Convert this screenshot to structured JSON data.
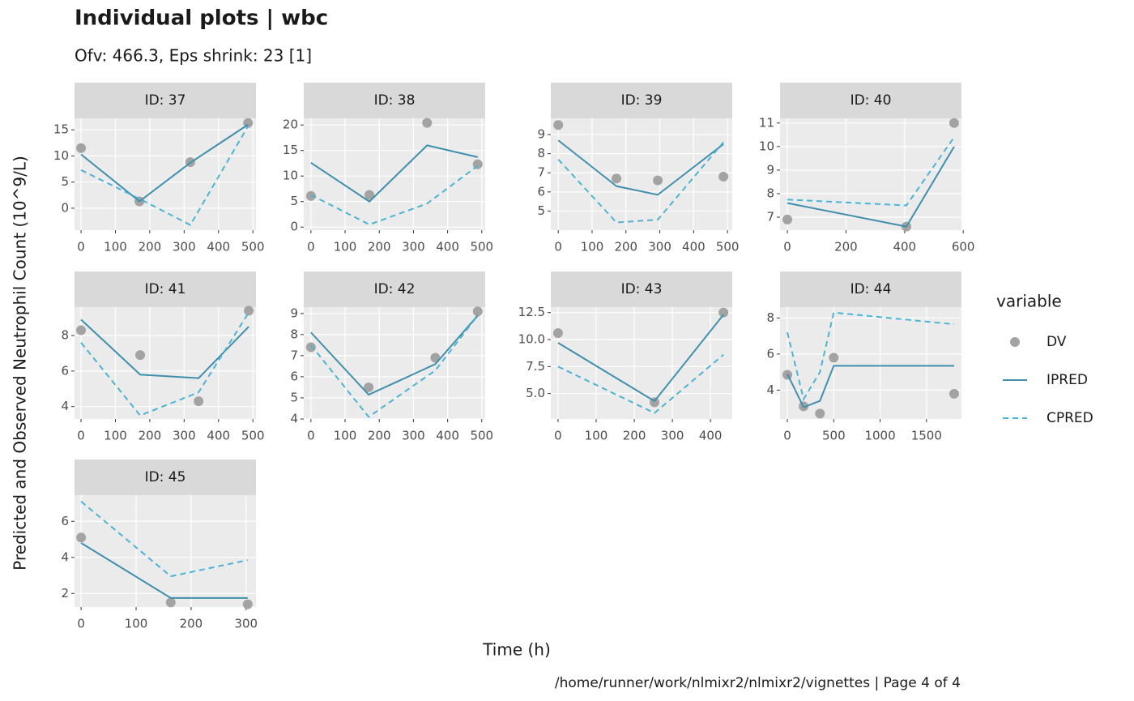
{
  "title": "Individual plots | wbc",
  "subtitle": "Ofv: 466.3, Eps shrink: 23 [1]",
  "x_label": "Time (h)",
  "y_label": "Predicted and Observed Neutrophil Count (10^9/L)",
  "caption": "/home/runner/work/nlmixr2/nlmixr2/vignettes | Page 4 of 4",
  "legend_title": "variable",
  "chart_data": [
    {
      "type": "line",
      "title": "ID: 37",
      "x": [
        0,
        170,
        318,
        486
      ],
      "xlim": [
        -19,
        509
      ],
      "xticks": [
        0,
        100,
        200,
        300,
        400,
        500
      ],
      "ylim": [
        -4.2,
        17.2
      ],
      "yticks": [
        0,
        5,
        10,
        15
      ],
      "grid": true,
      "series": [
        {
          "name": "DV",
          "color": "#a3a3a3",
          "style": "point",
          "values": [
            11.5,
            1.3,
            8.8,
            16.3
          ]
        },
        {
          "name": "IPRED",
          "color": "#3f8fad",
          "style": "solid",
          "values": [
            10.3,
            1.3,
            8.7,
            16
          ]
        },
        {
          "name": "CPRED",
          "color": "#4cb3d4",
          "style": "dashed",
          "values": [
            7.3,
            1.8,
            -3.2,
            15.7
          ]
        }
      ]
    },
    {
      "type": "line",
      "title": "ID: 38",
      "x": [
        0,
        171,
        340,
        488
      ],
      "xlim": [
        -21,
        510
      ],
      "xticks": [
        0,
        100,
        200,
        300,
        400,
        500
      ],
      "ylim": [
        -0.6,
        21.3
      ],
      "yticks": [
        0,
        5,
        10,
        15,
        20
      ],
      "grid": true,
      "series": [
        {
          "name": "DV",
          "color": "#a3a3a3",
          "style": "point",
          "values": [
            6.1,
            6.3,
            20.4,
            12.3
          ]
        },
        {
          "name": "IPRED",
          "color": "#3f8fad",
          "style": "solid",
          "values": [
            12.6,
            5,
            16,
            13.7
          ]
        },
        {
          "name": "CPRED",
          "color": "#4cb3d4",
          "style": "dashed",
          "values": [
            6.3,
            0.5,
            4.6,
            12
          ]
        }
      ]
    },
    {
      "type": "line",
      "title": "ID: 39",
      "x": [
        0,
        172,
        294,
        488
      ],
      "xlim": [
        -22,
        514
      ],
      "xticks": [
        0,
        100,
        200,
        300,
        400,
        500
      ],
      "ylim": [
        4.0,
        9.85
      ],
      "yticks": [
        5,
        6,
        7,
        8,
        9
      ],
      "grid": true,
      "series": [
        {
          "name": "DV",
          "color": "#a3a3a3",
          "style": "point",
          "values": [
            9.5,
            6.7,
            6.6,
            6.8
          ]
        },
        {
          "name": "IPRED",
          "color": "#3f8fad",
          "style": "solid",
          "values": [
            8.7,
            6.3,
            5.85,
            8.5
          ]
        },
        {
          "name": "CPRED",
          "color": "#4cb3d4",
          "style": "dashed",
          "values": [
            7.7,
            4.4,
            4.55,
            8.6
          ]
        }
      ]
    },
    {
      "type": "line",
      "title": "ID: 40",
      "x": [
        0,
        406,
        569
      ],
      "xlim": [
        -25,
        594
      ],
      "xticks": [
        0,
        200,
        400,
        600
      ],
      "ylim": [
        6.45,
        11.2
      ],
      "yticks": [
        7,
        8,
        9,
        10,
        11
      ],
      "grid": true,
      "series": [
        {
          "name": "DV",
          "color": "#a3a3a3",
          "style": "point",
          "values": [
            6.9,
            6.6,
            11
          ]
        },
        {
          "name": "IPRED",
          "color": "#3f8fad",
          "style": "solid",
          "values": [
            7.6,
            6.6,
            10
          ]
        },
        {
          "name": "CPRED",
          "color": "#4cb3d4",
          "style": "dashed",
          "values": [
            7.75,
            7.5,
            10.4
          ]
        }
      ]
    },
    {
      "type": "line",
      "title": "ID: 41",
      "x": [
        0,
        172,
        342,
        488
      ],
      "xlim": [
        -19,
        509
      ],
      "xticks": [
        0,
        100,
        200,
        300,
        400,
        500
      ],
      "ylim": [
        3.3,
        9.6
      ],
      "yticks": [
        4,
        6,
        8
      ],
      "grid": true,
      "series": [
        {
          "name": "DV",
          "color": "#a3a3a3",
          "style": "point",
          "values": [
            8.3,
            6.9,
            4.3,
            9.4
          ]
        },
        {
          "name": "IPRED",
          "color": "#3f8fad",
          "style": "solid",
          "values": [
            8.9,
            5.8,
            5.6,
            8.5
          ]
        },
        {
          "name": "CPRED",
          "color": "#4cb3d4",
          "style": "dashed",
          "values": [
            7.6,
            3.5,
            4.8,
            9.3
          ]
        }
      ]
    },
    {
      "type": "line",
      "title": "ID: 42",
      "x": [
        0,
        169,
        364,
        488
      ],
      "xlim": [
        -21,
        510
      ],
      "xticks": [
        0,
        100,
        200,
        300,
        400,
        500
      ],
      "ylim": [
        4.0,
        9.3
      ],
      "yticks": [
        4,
        5,
        6,
        7,
        8,
        9
      ],
      "grid": true,
      "series": [
        {
          "name": "DV",
          "color": "#a3a3a3",
          "style": "point",
          "values": [
            7.4,
            5.5,
            6.9,
            9.1
          ]
        },
        {
          "name": "IPRED",
          "color": "#3f8fad",
          "style": "solid",
          "values": [
            8.1,
            5.15,
            6.6,
            8.9
          ]
        },
        {
          "name": "CPRED",
          "color": "#4cb3d4",
          "style": "dashed",
          "values": [
            7.5,
            4.1,
            6.3,
            8.9
          ]
        }
      ]
    },
    {
      "type": "line",
      "title": "ID: 43",
      "x": [
        0,
        253,
        434
      ],
      "xlim": [
        -19,
        457
      ],
      "xticks": [
        0,
        100,
        200,
        300,
        400
      ],
      "ylim": [
        2.65,
        13.0
      ],
      "yticks": [
        {
          "value": 5,
          "label": "5.0"
        },
        7.5,
        {
          "value": 10,
          "label": "10.0"
        },
        12.5
      ],
      "grid": true,
      "series": [
        {
          "name": "DV",
          "color": "#a3a3a3",
          "style": "point",
          "values": [
            10.6,
            4.2,
            12.5
          ]
        },
        {
          "name": "IPRED",
          "color": "#3f8fad",
          "style": "solid",
          "values": [
            9.7,
            4.3,
            12.3
          ]
        },
        {
          "name": "CPRED",
          "color": "#4cb3d4",
          "style": "dashed",
          "values": [
            7.5,
            3.2,
            8.6
          ]
        }
      ]
    },
    {
      "type": "line",
      "title": "ID: 44",
      "x": [
        0,
        175,
        351,
        500,
        1798
      ],
      "xlim": [
        -79,
        1877
      ],
      "xticks": [
        0,
        500,
        1000,
        1500
      ],
      "ylim": [
        2.4,
        8.6
      ],
      "yticks": [
        4,
        6,
        8
      ],
      "grid": true,
      "series": [
        {
          "name": "DV",
          "color": "#a3a3a3",
          "style": "point",
          "values": [
            4.85,
            3.1,
            2.7,
            5.8,
            3.8
          ]
        },
        {
          "name": "IPRED",
          "color": "#3f8fad",
          "style": "solid",
          "values": [
            4.9,
            3.05,
            3.4,
            5.35,
            5.35
          ]
        },
        {
          "name": "CPRED",
          "color": "#4cb3d4",
          "style": "dashed",
          "values": [
            7.2,
            3.5,
            5.0,
            8.3,
            7.65
          ]
        }
      ]
    },
    {
      "type": "line",
      "title": "ID: 45",
      "x": [
        0,
        163,
        303
      ],
      "xlim": [
        -12,
        318
      ],
      "xticks": [
        0,
        100,
        200,
        300
      ],
      "ylim": [
        1.25,
        7.45
      ],
      "yticks": [
        2,
        4,
        6
      ],
      "grid": true,
      "series": [
        {
          "name": "DV",
          "color": "#a3a3a3",
          "style": "point",
          "values": [
            5.1,
            1.5,
            1.4
          ]
        },
        {
          "name": "IPRED",
          "color": "#3f8fad",
          "style": "solid",
          "values": [
            4.8,
            1.75,
            1.75
          ]
        },
        {
          "name": "CPRED",
          "color": "#4cb3d4",
          "style": "dashed",
          "values": [
            7.1,
            2.95,
            3.85
          ]
        }
      ]
    }
  ]
}
